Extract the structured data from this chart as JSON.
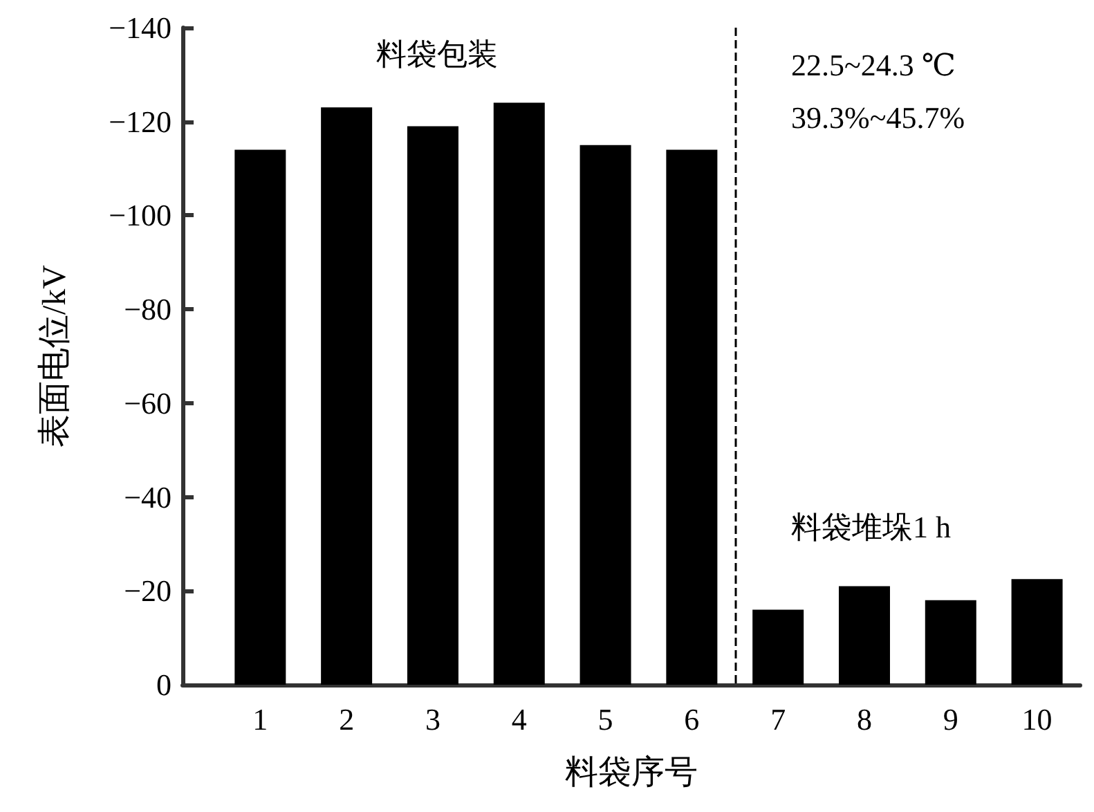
{
  "chart_data": {
    "type": "bar",
    "xlabel": "料袋序号",
    "ylabel": "表面电位/kV",
    "x": [
      1,
      2,
      3,
      4,
      5,
      6,
      7,
      8,
      9,
      10
    ],
    "values": [
      -114,
      -123,
      -119,
      -124,
      -115,
      -114,
      -16,
      -21,
      -18,
      -22.5
    ],
    "color": "#000000",
    "xlim": [
      0.1,
      10.5
    ],
    "xticks": [
      1,
      2,
      3,
      4,
      5,
      6,
      7,
      8,
      9,
      10
    ],
    "ylim": [
      0,
      -140
    ],
    "yticks": [
      0,
      -20,
      -40,
      -60,
      -80,
      -100,
      -120,
      -140
    ],
    "ref_lines": [
      {
        "axis": "x",
        "value": 6.5,
        "color": "#000000",
        "line_style": "dashed"
      }
    ],
    "annotations": [
      "料袋包装",
      "22.5~24.3 ℃",
      "39.3%~45.7%",
      "料袋堆垛1 h"
    ],
    "grid": false
  }
}
